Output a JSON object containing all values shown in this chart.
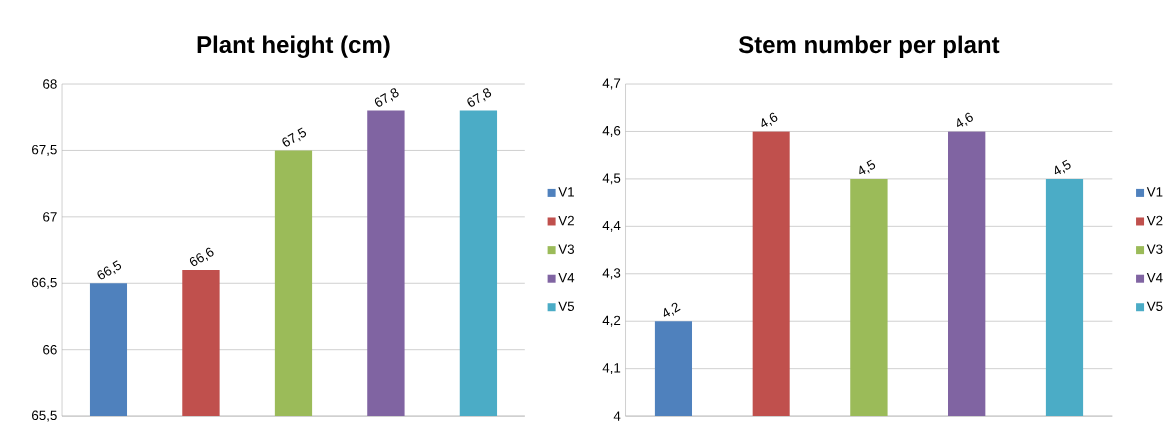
{
  "chart_data": [
    {
      "type": "bar",
      "title": "Plant height (cm)",
      "categories": [
        null
      ],
      "ylim": [
        65.5,
        68
      ],
      "yticks": [
        {
          "value": 65.5,
          "label": "65,5"
        },
        66,
        {
          "value": 66.5,
          "label": "66,5"
        },
        67,
        {
          "value": 67.5,
          "label": "67,5"
        },
        68
      ],
      "grid": "y",
      "legend": "right",
      "series": [
        {
          "name": "V1",
          "color": "#4f81bd",
          "values": [
            66.5
          ],
          "value_labels": [
            "66,5"
          ]
        },
        {
          "name": "V2",
          "color": "#c0504d",
          "values": [
            66.6
          ],
          "value_labels": [
            "66,6"
          ]
        },
        {
          "name": "V3",
          "color": "#9bbb59",
          "values": [
            67.5
          ],
          "value_labels": [
            "67,5"
          ]
        },
        {
          "name": "V4",
          "color": "#8064a2",
          "values": [
            67.8
          ],
          "value_labels": [
            "67,8"
          ]
        },
        {
          "name": "V5",
          "color": "#4bacc6",
          "values": [
            67.8
          ],
          "value_labels": [
            "67,8"
          ]
        }
      ]
    },
    {
      "type": "bar",
      "title": "Stem number per plant",
      "categories": [
        null
      ],
      "ylim": [
        4,
        4.7
      ],
      "yticks": [
        4,
        {
          "value": 4.1,
          "label": "4,1"
        },
        {
          "value": 4.2,
          "label": "4,2"
        },
        {
          "value": 4.3,
          "label": "4,3"
        },
        {
          "value": 4.4,
          "label": "4,4"
        },
        {
          "value": 4.5,
          "label": "4,5"
        },
        {
          "value": 4.6,
          "label": "4,6"
        },
        {
          "value": 4.7,
          "label": "4,7"
        }
      ],
      "grid": "y",
      "legend": "right",
      "series": [
        {
          "name": "V1",
          "color": "#4f81bd",
          "values": [
            4.2
          ],
          "value_labels": [
            "4,2"
          ]
        },
        {
          "name": "V2",
          "color": "#c0504d",
          "values": [
            4.6
          ],
          "value_labels": [
            "4,6"
          ]
        },
        {
          "name": "V3",
          "color": "#9bbb59",
          "values": [
            4.5
          ],
          "value_labels": [
            "4,5"
          ]
        },
        {
          "name": "V4",
          "color": "#8064a2",
          "values": [
            4.6
          ],
          "value_labels": [
            "4,6"
          ]
        },
        {
          "name": "V5",
          "color": "#4bacc6",
          "values": [
            4.5
          ],
          "value_labels": [
            "4,5"
          ]
        }
      ]
    }
  ]
}
